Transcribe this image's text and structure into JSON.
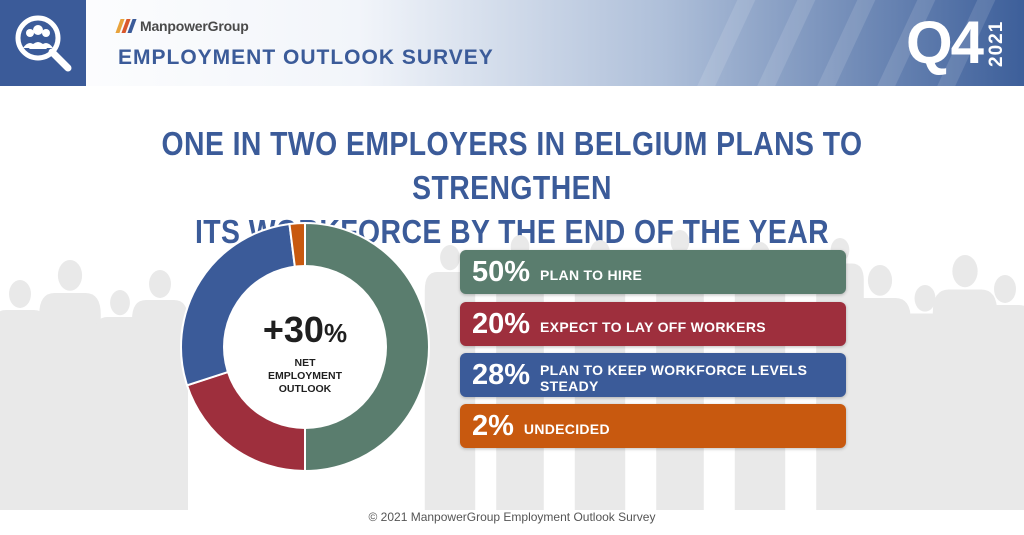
{
  "header": {
    "brand_name": "ManpowerGroup",
    "survey_title": "EMPLOYMENT OUTLOOK SURVEY",
    "quarter": "Q4",
    "year": "2021",
    "logo_icon": "magnifier-people-icon",
    "colors": {
      "logo_bg": "#3b5b99",
      "brand_mark": [
        "#e8a33b",
        "#d9582b",
        "#3b5b99"
      ]
    }
  },
  "headline": {
    "line1": "ONE IN TWO EMPLOYERS IN BELGIUM PLANS TO STRENGTHEN",
    "line2": "ITS WORKFORCE BY THE END OF THE YEAR"
  },
  "center": {
    "value": "+30",
    "unit": "%",
    "label_lines": [
      "NET",
      "EMPLOYMENT",
      "OUTLOOK"
    ]
  },
  "chart_data": {
    "type": "pie",
    "categories": [
      "PLAN TO HIRE",
      "EXPECT TO LAY OFF WORKERS",
      "PLAN TO KEEP WORKFORCE LEVELS STEADY",
      "UNDECIDED"
    ],
    "values": [
      50,
      20,
      28,
      2
    ],
    "value_labels": [
      "50%",
      "20%",
      "28%",
      "2%"
    ],
    "colors": [
      "#5a7d6e",
      "#9e2f3d",
      "#3b5b99",
      "#c8590f"
    ]
  },
  "footer": {
    "copyright": "© 2021 ManpowerGroup Employment Outlook Survey"
  }
}
